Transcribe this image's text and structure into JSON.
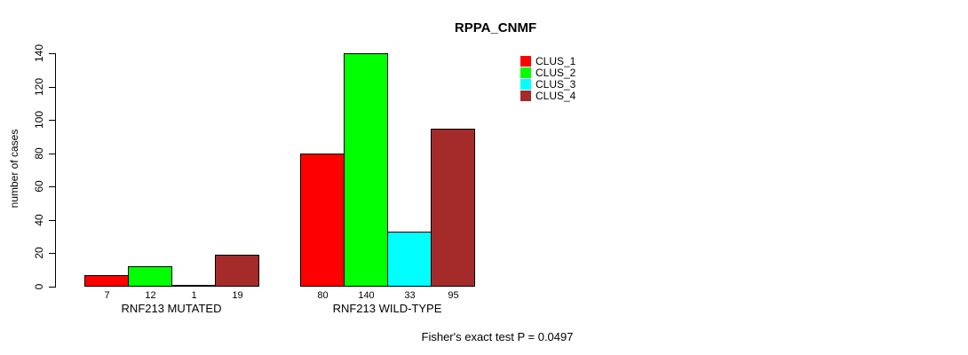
{
  "chart_data": {
    "type": "bar",
    "title": "RPPA_CNMF",
    "ylabel": "number of cases",
    "xlabel": "",
    "ylim": [
      0,
      140
    ],
    "yticks": [
      0,
      20,
      40,
      60,
      80,
      100,
      120,
      140
    ],
    "grid": false,
    "legend_position": "top-right",
    "categories": [
      "RNF213 MUTATED",
      "RNF213 WILD-TYPE"
    ],
    "series": [
      {
        "name": "CLUS_1",
        "color": "#FF0000",
        "values": [
          7,
          80
        ]
      },
      {
        "name": "CLUS_2",
        "color": "#00FF00",
        "values": [
          12,
          140
        ]
      },
      {
        "name": "CLUS_3",
        "color": "#00FFFF",
        "values": [
          1,
          33
        ]
      },
      {
        "name": "CLUS_4",
        "color": "#A52A2A",
        "values": [
          19,
          95
        ]
      }
    ],
    "bar_value_labels_shown": true,
    "footnote": "Fisher's exact test P = 0.0497"
  }
}
